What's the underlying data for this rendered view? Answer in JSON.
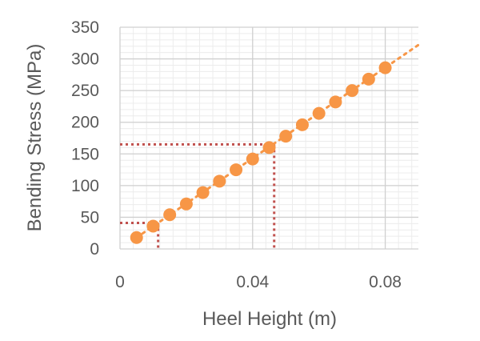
{
  "chart_data": {
    "type": "scatter",
    "xlabel": "Heel Height (m)",
    "ylabel": "Bending Stress (MPa)",
    "xlim": [
      0,
      0.09
    ],
    "ylim": [
      0,
      350
    ],
    "x_ticks": [
      0,
      0.04,
      0.08
    ],
    "x_tick_labels": [
      "0",
      "0.04",
      "0.08"
    ],
    "y_ticks": [
      0,
      50,
      100,
      150,
      200,
      250,
      300,
      350
    ],
    "y_tick_labels": [
      "0",
      "50",
      "100",
      "150",
      "200",
      "250",
      "300",
      "350"
    ],
    "grid": true,
    "series": [
      {
        "color": "#F79646",
        "x": [
          0.005,
          0.01,
          0.015,
          0.02,
          0.025,
          0.03,
          0.035,
          0.04,
          0.045,
          0.05,
          0.055,
          0.06,
          0.065,
          0.07,
          0.075,
          0.08
        ],
        "y": [
          18,
          36,
          54,
          71,
          89,
          107,
          125,
          142,
          160,
          178,
          196,
          214,
          232,
          250,
          268,
          286
        ]
      }
    ],
    "trendline": {
      "style": "dotted",
      "color": "#F79646",
      "x": [
        0.005,
        0.09
      ],
      "y": [
        18,
        322
      ]
    },
    "guide_lines": {
      "style": "dotted",
      "color": "#C0504D",
      "points": [
        {
          "x": 0.0115,
          "y": 41
        },
        {
          "x": 0.0465,
          "y": 165
        }
      ]
    }
  }
}
